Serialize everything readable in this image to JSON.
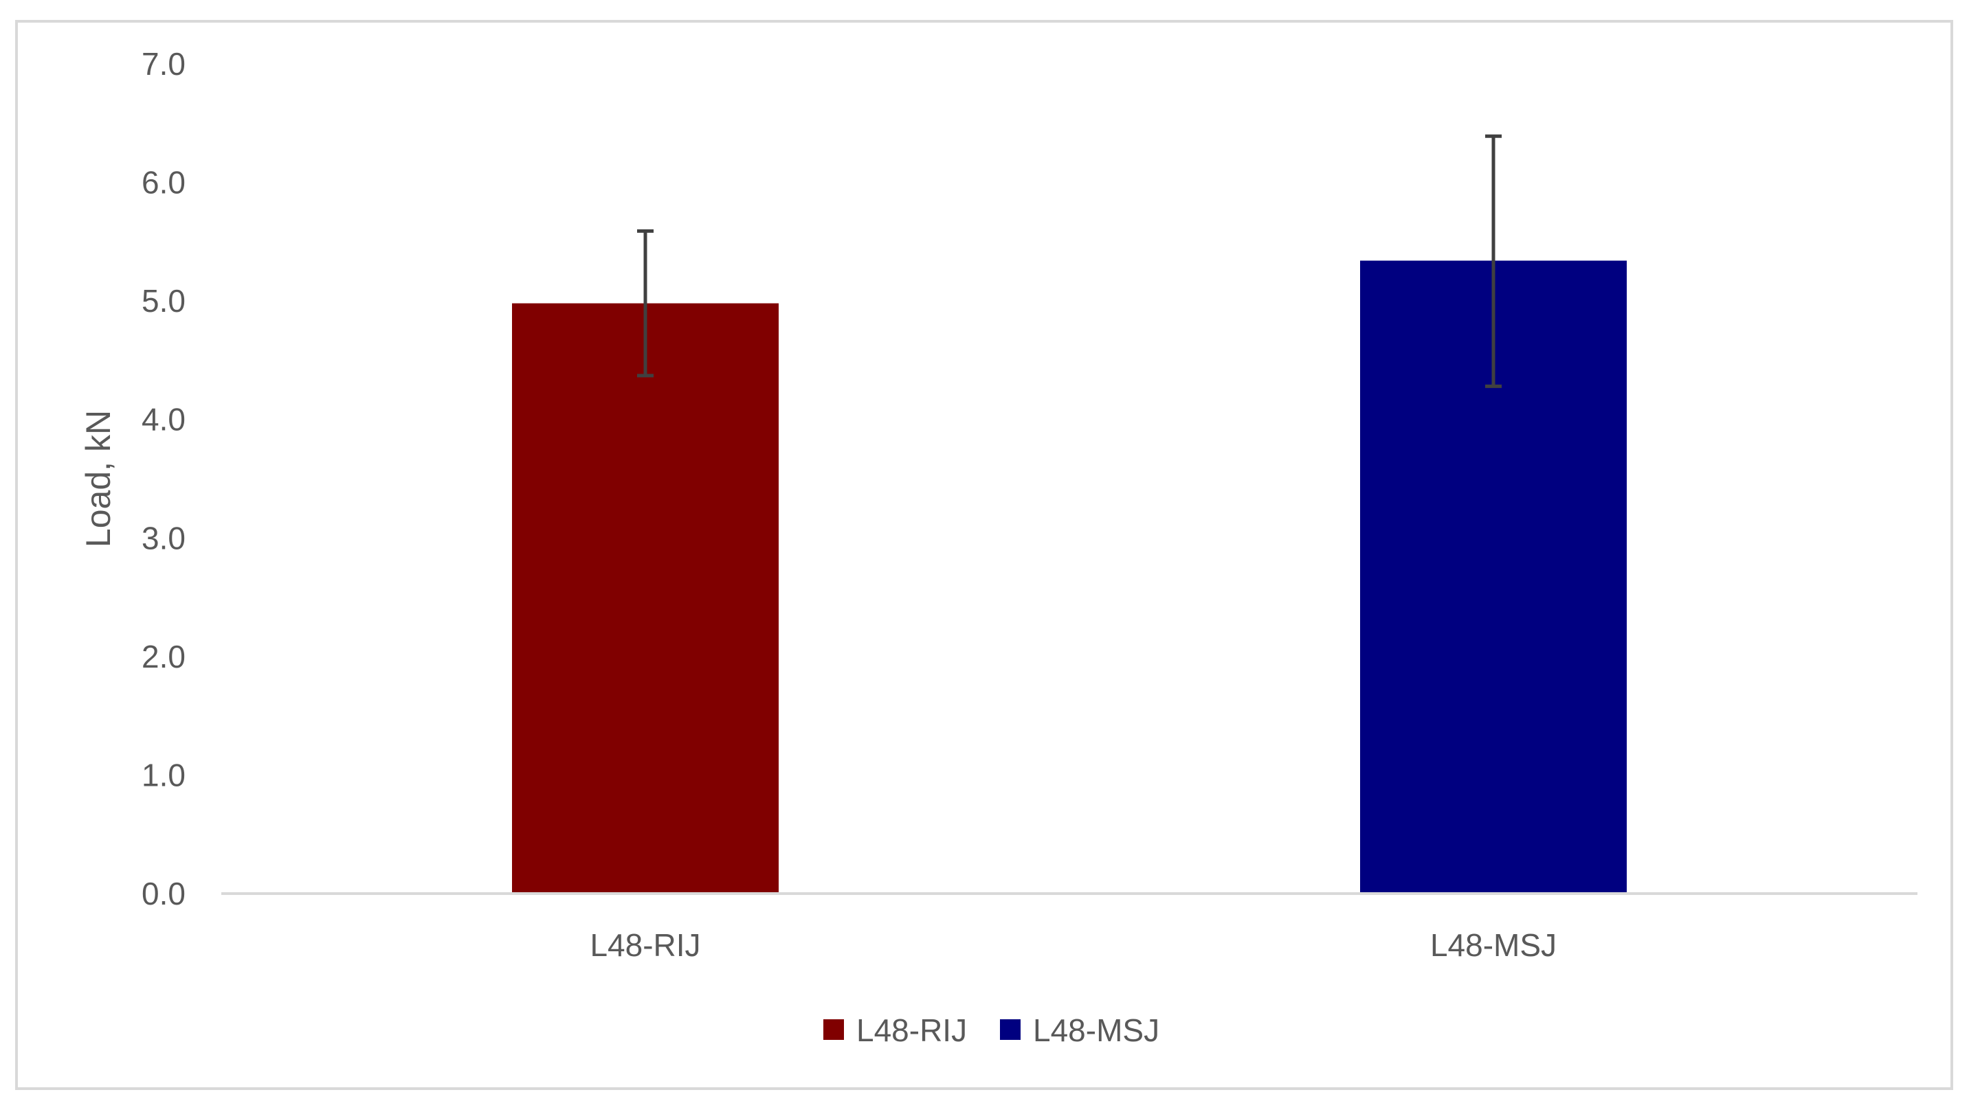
{
  "chart_data": {
    "type": "bar",
    "title": "",
    "xlabel": "",
    "ylabel": "Load, kN",
    "ylim": [
      0,
      7
    ],
    "yticks": [
      "0.0",
      "1.0",
      "2.0",
      "3.0",
      "4.0",
      "5.0",
      "6.0",
      "7.0"
    ],
    "categories": [
      "L48-RIJ",
      "L48-MSJ"
    ],
    "values": [
      4.98,
      5.34
    ],
    "error_upper": [
      5.59,
      6.39
    ],
    "error_lower": [
      4.37,
      4.28
    ],
    "colors": [
      "#800000",
      "#000080"
    ],
    "error_bar_color": "#404040",
    "axis_color": "#d9d9d9",
    "grid": false,
    "legend": {
      "position": "bottom",
      "entries": [
        {
          "label": "L48-RIJ",
          "color": "#800000"
        },
        {
          "label": "L48-MSJ",
          "color": "#000080"
        }
      ]
    }
  }
}
